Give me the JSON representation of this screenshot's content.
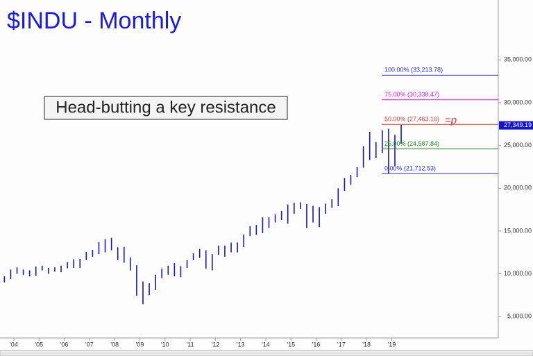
{
  "chart_data": {
    "type": "ohlc",
    "title": "$INDU - Monthly",
    "annotation": "Head-butting a key resistance",
    "marker_text": "=p",
    "last_price": {
      "value": 27349.19,
      "label": "27,349.19"
    },
    "xlim": [
      2003.45,
      2023.23
    ],
    "ylim": [
      2500,
      42000
    ],
    "xticks": [
      {
        "value": 2004,
        "label": "'04"
      },
      {
        "value": 2005,
        "label": "'05"
      },
      {
        "value": 2006,
        "label": "'06"
      },
      {
        "value": 2007,
        "label": "'07"
      },
      {
        "value": 2008,
        "label": "'08"
      },
      {
        "value": 2009,
        "label": "'09"
      },
      {
        "value": 2010,
        "label": "'10"
      },
      {
        "value": 2011,
        "label": "'11"
      },
      {
        "value": 2012,
        "label": "'12"
      },
      {
        "value": 2013,
        "label": "'13"
      },
      {
        "value": 2014,
        "label": "'14"
      },
      {
        "value": 2015,
        "label": "'15"
      },
      {
        "value": 2016,
        "label": "'16"
      },
      {
        "value": 2017,
        "label": "'17"
      },
      {
        "value": 2018,
        "label": "'18"
      },
      {
        "value": 2019,
        "label": "'19"
      }
    ],
    "yticks": [
      {
        "value": 5000,
        "label": "5,000.00"
      },
      {
        "value": 10000,
        "label": "10,000.00"
      },
      {
        "value": 15000,
        "label": "15,000.00"
      },
      {
        "value": 20000,
        "label": "20,000.00"
      },
      {
        "value": 25000,
        "label": "25,000.00"
      },
      {
        "value": 30000,
        "label": "30,000.00"
      },
      {
        "value": 35000,
        "label": "35,000.00"
      }
    ],
    "levels": [
      {
        "label": "100.00% (33,213.78)",
        "value": 33213.78,
        "color": "#2a2ad0"
      },
      {
        "label": "75.00% (30,338.47)",
        "value": 30338.47,
        "color": "#d020d0"
      },
      {
        "label": "50.00% (27,463.16)",
        "value": 27463.16,
        "color": "#c83a3a"
      },
      {
        "label": "25.00% (24,587.84)",
        "value": 24587.84,
        "color": "#1a8a1a"
      },
      {
        "label": "0.00% (21,712.53)",
        "value": 21712.53,
        "color": "#2a2ad0"
      }
    ],
    "x": [
      2003.625,
      2003.875,
      2004.125,
      2004.375,
      2004.625,
      2004.875,
      2005.125,
      2005.375,
      2005.625,
      2005.875,
      2006.125,
      2006.375,
      2006.625,
      2006.875,
      2007.125,
      2007.375,
      2007.625,
      2007.875,
      2008.125,
      2008.375,
      2008.625,
      2008.875,
      2009.125,
      2009.375,
      2009.625,
      2009.875,
      2010.125,
      2010.375,
      2010.625,
      2010.875,
      2011.125,
      2011.375,
      2011.625,
      2011.875,
      2012.125,
      2012.375,
      2012.625,
      2012.875,
      2013.125,
      2013.375,
      2013.625,
      2013.875,
      2014.125,
      2014.375,
      2014.625,
      2014.875,
      2015.125,
      2015.375,
      2015.625,
      2015.875,
      2016.125,
      2016.375,
      2016.625,
      2016.875,
      2017.125,
      2017.375,
      2017.625,
      2017.875,
      2018.125,
      2018.375,
      2018.625,
      2018.875,
      2019.125,
      2019.375
    ],
    "series": [
      {
        "color": "#1414c8",
        "high": [
          9700,
          10500,
          10750,
          10500,
          10400,
          10850,
          10950,
          10700,
          10750,
          10950,
          11350,
          11700,
          11750,
          12550,
          12800,
          13700,
          14050,
          14200,
          13100,
          13150,
          11900,
          11000,
          9100,
          8900,
          9900,
          10600,
          10950,
          11250,
          10900,
          11600,
          12400,
          12900,
          12750,
          12300,
          13300,
          13300,
          13650,
          13650,
          14600,
          15550,
          15700,
          16600,
          16600,
          16950,
          17350,
          18100,
          18300,
          18350,
          18150,
          17950,
          17800,
          18200,
          18700,
          19990,
          21200,
          21550,
          22450,
          24900,
          26600,
          25400,
          26770,
          26950,
          26250,
          27400
        ],
        "low": [
          9000,
          9400,
          10000,
          9850,
          9700,
          9750,
          10400,
          10000,
          10250,
          10200,
          10650,
          10700,
          10700,
          11600,
          12000,
          12300,
          12500,
          12750,
          11600,
          11300,
          10400,
          7450,
          6450,
          7500,
          8100,
          9500,
          9900,
          9700,
          9600,
          10700,
          11600,
          11850,
          10600,
          10400,
          12200,
          12000,
          12500,
          12500,
          13100,
          14400,
          14550,
          14750,
          15350,
          16000,
          16300,
          15850,
          17000,
          17600,
          15350,
          16000,
          15450,
          17000,
          17700,
          17900,
          19700,
          20400,
          21300,
          22400,
          23300,
          23500,
          24100,
          21700,
          22600,
          25200
        ]
      }
    ]
  }
}
